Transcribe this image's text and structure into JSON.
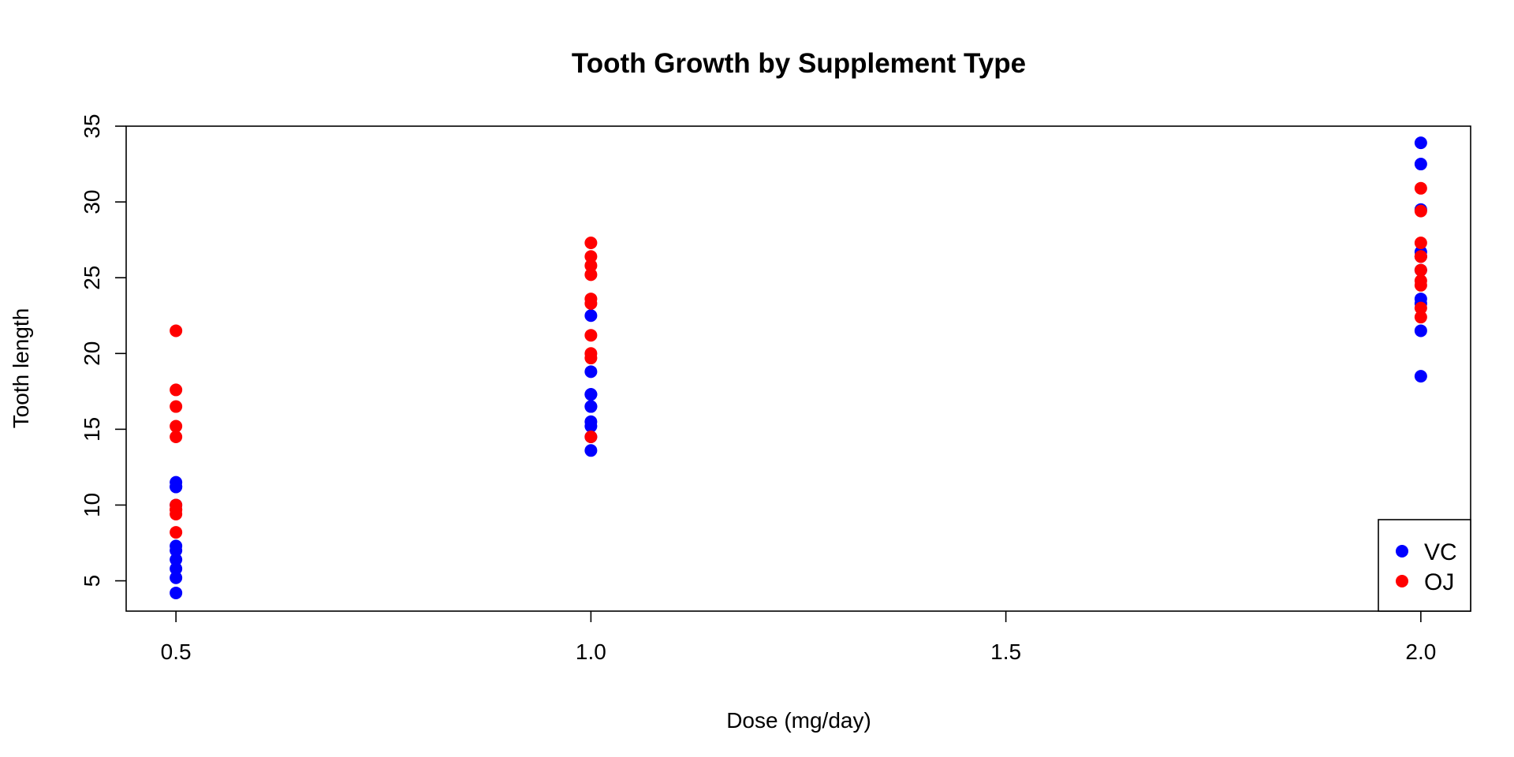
{
  "chart_data": {
    "type": "scatter",
    "title": "Tooth Growth by Supplement Type",
    "xlabel": "Dose (mg/day)",
    "ylabel": "Tooth length",
    "xlim": [
      0.44,
      2.06
    ],
    "ylim": [
      3,
      35
    ],
    "x_ticks": [
      0.5,
      1.0,
      1.5,
      2.0
    ],
    "x_tick_labels": [
      "0.5",
      "1.0",
      "1.5",
      "2.0"
    ],
    "y_ticks": [
      5,
      10,
      15,
      20,
      25,
      30,
      35
    ],
    "y_tick_labels": [
      "5",
      "10",
      "15",
      "20",
      "25",
      "30",
      "35"
    ],
    "grid": false,
    "legend_position": "bottom-right",
    "series": [
      {
        "name": "VC",
        "color": "#0000ff",
        "points": [
          [
            0.5,
            4.2
          ],
          [
            0.5,
            11.5
          ],
          [
            0.5,
            7.3
          ],
          [
            0.5,
            5.8
          ],
          [
            0.5,
            6.4
          ],
          [
            0.5,
            10.0
          ],
          [
            0.5,
            11.2
          ],
          [
            0.5,
            11.2
          ],
          [
            0.5,
            5.2
          ],
          [
            0.5,
            7.0
          ],
          [
            1.0,
            16.5
          ],
          [
            1.0,
            16.5
          ],
          [
            1.0,
            15.2
          ],
          [
            1.0,
            17.3
          ],
          [
            1.0,
            22.5
          ],
          [
            1.0,
            17.3
          ],
          [
            1.0,
            13.6
          ],
          [
            1.0,
            14.5
          ],
          [
            1.0,
            18.8
          ],
          [
            1.0,
            15.5
          ],
          [
            2.0,
            23.6
          ],
          [
            2.0,
            18.5
          ],
          [
            2.0,
            33.9
          ],
          [
            2.0,
            25.5
          ],
          [
            2.0,
            26.4
          ],
          [
            2.0,
            32.5
          ],
          [
            2.0,
            26.7
          ],
          [
            2.0,
            21.5
          ],
          [
            2.0,
            23.3
          ],
          [
            2.0,
            29.5
          ]
        ]
      },
      {
        "name": "OJ",
        "color": "#ff0000",
        "points": [
          [
            0.5,
            15.2
          ],
          [
            0.5,
            21.5
          ],
          [
            0.5,
            17.6
          ],
          [
            0.5,
            9.7
          ],
          [
            0.5,
            14.5
          ],
          [
            0.5,
            10.0
          ],
          [
            0.5,
            8.2
          ],
          [
            0.5,
            9.4
          ],
          [
            0.5,
            16.5
          ],
          [
            0.5,
            9.7
          ],
          [
            1.0,
            19.7
          ],
          [
            1.0,
            23.3
          ],
          [
            1.0,
            23.6
          ],
          [
            1.0,
            26.4
          ],
          [
            1.0,
            20.0
          ],
          [
            1.0,
            25.2
          ],
          [
            1.0,
            25.8
          ],
          [
            1.0,
            21.2
          ],
          [
            1.0,
            14.5
          ],
          [
            1.0,
            27.3
          ],
          [
            2.0,
            25.5
          ],
          [
            2.0,
            26.4
          ],
          [
            2.0,
            22.4
          ],
          [
            2.0,
            24.5
          ],
          [
            2.0,
            24.8
          ],
          [
            2.0,
            30.9
          ],
          [
            2.0,
            26.4
          ],
          [
            2.0,
            27.3
          ],
          [
            2.0,
            29.4
          ],
          [
            2.0,
            23.0
          ]
        ]
      }
    ]
  }
}
